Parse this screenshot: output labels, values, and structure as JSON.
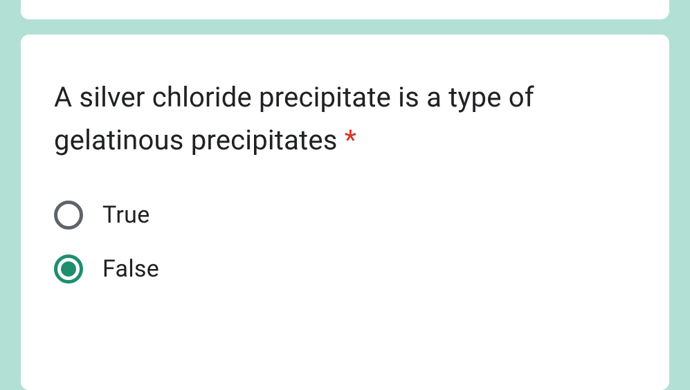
{
  "background_color": "#b3e0d5",
  "card_background": "#ffffff",
  "question": {
    "text": "A silver chloride precipitate is a type of gelatinous precipitates",
    "required_marker": " *",
    "text_color": "#202124",
    "required_color": "#d93025",
    "font_size": 40
  },
  "options": [
    {
      "label": "True",
      "selected": false
    },
    {
      "label": "False",
      "selected": true
    }
  ],
  "radio_style": {
    "unselected_border_color": "#5f6368",
    "selected_border_color": "#1e8e6e",
    "selected_fill_color": "#1e8e6e",
    "size": 42,
    "border_width": 5,
    "inner_dot_size": 22
  },
  "option_label_style": {
    "font_size": 34,
    "color": "#202124"
  }
}
